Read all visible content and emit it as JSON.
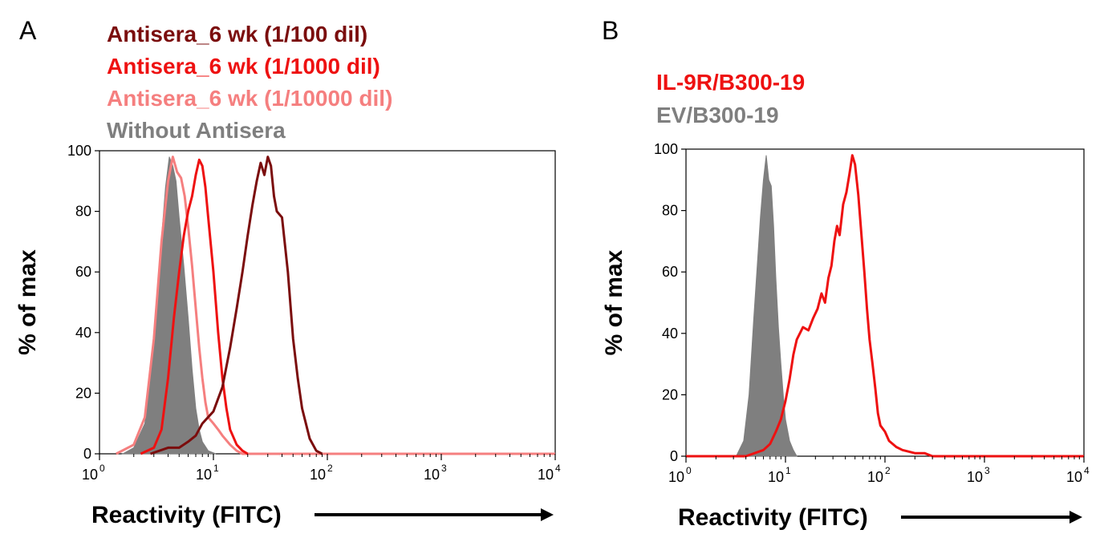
{
  "panels": [
    {
      "letter": "A",
      "legend": [
        {
          "text": "Antisera_6  wk (1/100 dil)",
          "color": "#7b0d0d"
        },
        {
          "text": "Antisera_6  wk (1/1000 dil)",
          "color": "#ee1111"
        },
        {
          "text": "Antisera_6  wk (1/10000 dil)",
          "color": "#f57f7f"
        },
        {
          "text": "Without Antisera",
          "color": "#7f7f7f"
        }
      ]
    },
    {
      "letter": "B",
      "legend": [
        {
          "text": "IL-9R/B300-19",
          "color": "#ee1111"
        },
        {
          "text": "EV/B300-19",
          "color": "#7f7f7f"
        }
      ]
    }
  ],
  "chart_data": [
    {
      "type": "line",
      "xlabel": "Reactivity (FITC)",
      "ylabel": "% of max",
      "xscale": "log",
      "xlim": [
        1,
        10000
      ],
      "ylim": [
        0,
        100
      ],
      "x_ticks": [
        {
          "base": "10",
          "exp": "0"
        },
        {
          "base": "10",
          "exp": "1"
        },
        {
          "base": "10",
          "exp": "2"
        },
        {
          "base": "10",
          "exp": "3"
        },
        {
          "base": "10",
          "exp": "4"
        }
      ],
      "y_ticks": [
        "0",
        "20",
        "40",
        "60",
        "80",
        "100"
      ],
      "series": [
        {
          "name": "Without Antisera",
          "color": "#7f7f7f",
          "filled": true,
          "x": [
            1.6,
            2,
            2.5,
            3,
            3.4,
            3.8,
            4.1,
            4.4,
            4.7,
            5,
            5.5,
            6,
            6.5,
            7,
            7.5,
            8,
            9,
            10.5
          ],
          "y": [
            0,
            2,
            10,
            35,
            65,
            88,
            98,
            95,
            90,
            78,
            62,
            45,
            28,
            15,
            8,
            4,
            1,
            0
          ]
        },
        {
          "name": "Antisera_6  wk (1/10000 dil)",
          "color": "#f57f7f",
          "filled": false,
          "x": [
            1.4,
            2,
            2.5,
            3,
            3.5,
            4,
            4.4,
            4.8,
            5.2,
            5.6,
            6,
            6.5,
            7,
            7.5,
            8,
            8.5,
            9,
            10,
            11,
            12,
            14,
            16,
            18,
            10000
          ],
          "y": [
            0,
            3,
            12,
            38,
            70,
            90,
            98,
            93,
            91,
            85,
            75,
            62,
            48,
            35,
            25,
            17,
            12,
            10,
            8,
            6,
            3,
            1,
            0,
            0
          ]
        },
        {
          "name": "Antisera_6  wk (1/1000 dil)",
          "color": "#ee1111",
          "filled": false,
          "x": [
            2.3,
            3,
            3.5,
            4,
            4.5,
            5,
            5.5,
            6,
            6.5,
            7,
            7.5,
            8,
            8.5,
            9,
            10,
            11,
            12,
            13,
            14,
            16,
            18,
            20
          ],
          "y": [
            0,
            2,
            8,
            25,
            45,
            60,
            72,
            80,
            85,
            92,
            97,
            95,
            88,
            78,
            60,
            40,
            25,
            15,
            8,
            3,
            1,
            0
          ]
        },
        {
          "name": "Antisera_6  wk (1/100 dil)",
          "color": "#7b0d0d",
          "filled": false,
          "x": [
            2.8,
            4,
            5,
            6,
            7,
            8,
            10,
            12,
            14,
            16,
            18,
            20,
            22,
            24,
            26,
            28,
            30,
            32,
            34,
            36,
            40,
            45,
            50,
            55,
            60,
            70,
            80,
            90
          ],
          "y": [
            0,
            2,
            2,
            4,
            6,
            10,
            14,
            22,
            35,
            48,
            60,
            72,
            82,
            90,
            96,
            92,
            98,
            95,
            85,
            80,
            78,
            60,
            38,
            25,
            15,
            5,
            1,
            0
          ]
        }
      ]
    },
    {
      "type": "line",
      "xlabel": "Reactivity (FITC)",
      "ylabel": "% of max",
      "xscale": "log",
      "xlim": [
        1,
        10000
      ],
      "ylim": [
        0,
        100
      ],
      "x_ticks": [
        {
          "base": "10",
          "exp": "0"
        },
        {
          "base": "10",
          "exp": "1"
        },
        {
          "base": "10",
          "exp": "2"
        },
        {
          "base": "10",
          "exp": "3"
        },
        {
          "base": "10",
          "exp": "4"
        }
      ],
      "y_ticks": [
        "0",
        "20",
        "40",
        "60",
        "80",
        "100"
      ],
      "series": [
        {
          "name": "EV/B300-19",
          "color": "#7f7f7f",
          "filled": true,
          "x": [
            3.2,
            3.8,
            4.3,
            4.8,
            5.2,
            5.6,
            6,
            6.4,
            6.8,
            7.2,
            7.6,
            8,
            8.5,
            9,
            9.5,
            10,
            11,
            12,
            13
          ],
          "y": [
            0,
            5,
            20,
            45,
            62,
            78,
            90,
            98,
            90,
            88,
            75,
            58,
            42,
            30,
            20,
            12,
            5,
            2,
            0
          ]
        },
        {
          "name": "IL-9R/B300-19",
          "color": "#ee1111",
          "filled": false,
          "x": [
            1,
            4,
            6,
            7,
            8,
            9,
            10,
            11,
            12,
            13,
            15,
            17,
            19,
            21,
            23,
            25,
            27,
            29,
            31,
            33,
            35,
            38,
            41,
            44,
            47,
            50,
            54,
            58,
            62,
            66,
            70,
            75,
            80,
            85,
            90,
            100,
            110,
            130,
            150,
            200,
            250,
            300,
            10000
          ],
          "y": [
            0,
            0,
            2,
            4,
            8,
            12,
            18,
            25,
            33,
            38,
            42,
            41,
            45,
            48,
            53,
            50,
            58,
            62,
            70,
            75,
            72,
            82,
            86,
            92,
            98,
            95,
            85,
            72,
            60,
            48,
            38,
            30,
            22,
            14,
            10,
            8,
            5,
            3,
            2,
            1,
            1,
            0,
            0
          ]
        }
      ]
    }
  ]
}
